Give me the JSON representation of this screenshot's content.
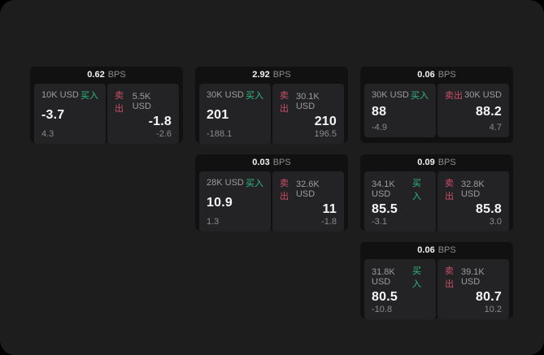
{
  "labels": {
    "bps": "BPS",
    "buy": "买入",
    "sell": "卖出"
  },
  "colors": {
    "background": "#000000",
    "panel": "#1d1d1e",
    "card": "#111112",
    "tile": "#232325",
    "buy_green": "#30bd81",
    "sell_red": "#cc4f66",
    "value_white": "#f5f5f5",
    "muted_gray": "#9c9c9c"
  },
  "cards": [
    {
      "bps": "0.62",
      "buy": {
        "size": "10K USD",
        "value": "-3.7",
        "delta": "4.3"
      },
      "sell": {
        "size": "5.5K USD",
        "value": "-1.8",
        "delta": "-2.6"
      }
    },
    {
      "bps": "2.92",
      "buy": {
        "size": "30K USD",
        "value": "201",
        "delta": "-188.1"
      },
      "sell": {
        "size": "30.1K USD",
        "value": "210",
        "delta": "196.5"
      }
    },
    {
      "bps": "0.06",
      "buy": {
        "size": "30K USD",
        "value": "88",
        "delta": "-4.9"
      },
      "sell": {
        "size": "30K USD",
        "value": "88.2",
        "delta": "4.7"
      }
    },
    {
      "bps": "0.03",
      "buy": {
        "size": "28K USD",
        "value": "10.9",
        "delta": "1.3"
      },
      "sell": {
        "size": "32.6K USD",
        "value": "11",
        "delta": "-1.8"
      }
    },
    {
      "bps": "0.09",
      "buy": {
        "size": "34.1K USD",
        "value": "85.5",
        "delta": "-3.1"
      },
      "sell": {
        "size": "32.8K USD",
        "value": "85.8",
        "delta": "3.0"
      }
    },
    {
      "bps": "0.06",
      "buy": {
        "size": "31.8K USD",
        "value": "80.5",
        "delta": "-10.8"
      },
      "sell": {
        "size": "39.1K USD",
        "value": "80.7",
        "delta": "10.2"
      }
    }
  ]
}
